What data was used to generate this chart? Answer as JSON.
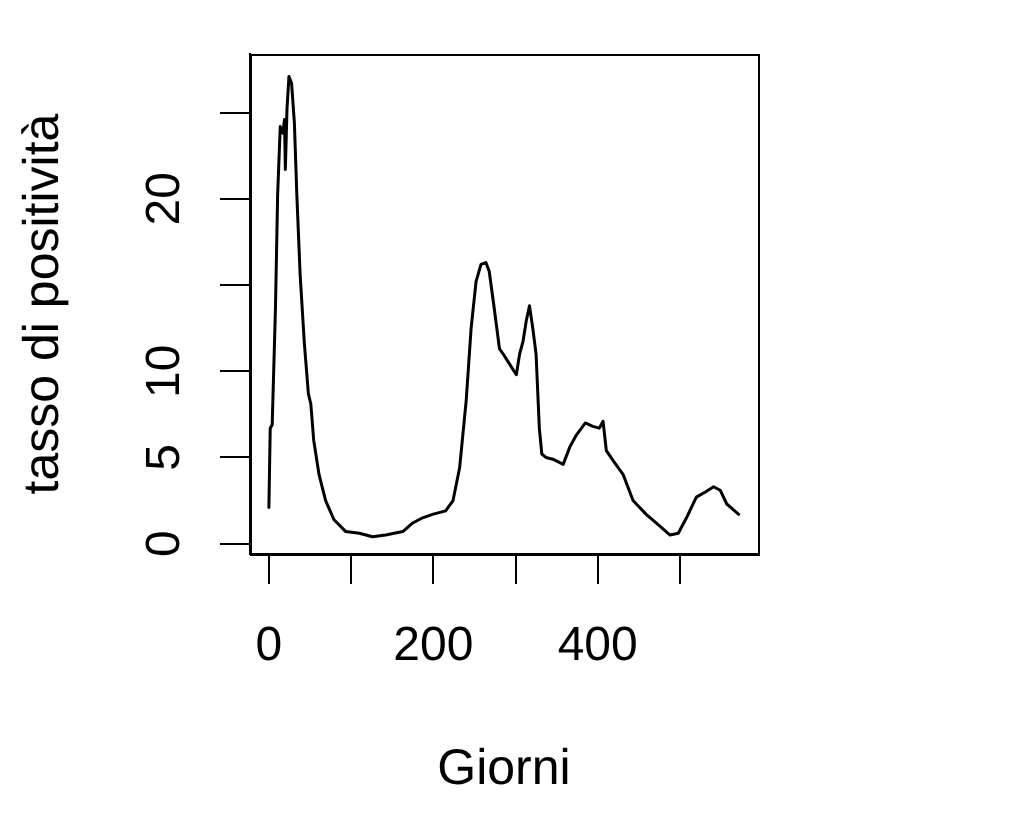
{
  "chart_data": {
    "type": "line",
    "xlabel": "Giorni",
    "ylabel": "tasso di positività",
    "color": "#000000",
    "x": [
      0,
      1.6,
      4,
      8,
      10.6,
      13.8,
      17,
      19,
      20,
      22,
      24.4,
      27.6,
      31,
      34,
      38,
      43,
      48,
      51,
      54.5,
      61,
      69,
      79,
      93.5,
      110,
      126,
      142,
      163,
      175,
      187,
      199,
      215,
      224,
      232,
      240,
      246,
      252,
      258,
      264,
      268,
      274,
      280.5,
      285,
      293,
      301,
      305,
      309,
      313,
      317,
      321,
      325,
      329,
      332,
      337,
      345.5,
      358,
      366,
      374,
      385,
      394,
      402,
      406.5,
      410.5,
      419,
      431,
      443,
      459,
      476,
      488,
      498,
      508,
      520,
      531,
      541,
      549,
      557,
      571.5
    ],
    "values": [
      2.1,
      6.7,
      6.9,
      13.7,
      20.2,
      24.2,
      23.8,
      24.6,
      21.7,
      25.2,
      27.1,
      26.7,
      24.4,
      20.2,
      15.6,
      11.7,
      8.7,
      8.1,
      6,
      4,
      2.5,
      1.4,
      0.7,
      0.6,
      0.4,
      0.5,
      0.7,
      1.2,
      1.5,
      1.7,
      1.9,
      2.5,
      4.4,
      8.3,
      12.5,
      15.2,
      16.2,
      16.3,
      15.8,
      13.7,
      11.3,
      11,
      10.4,
      9.8,
      11,
      11.7,
      12.9,
      13.8,
      12.5,
      11,
      6.7,
      5.2,
      5,
      4.9,
      4.6,
      5.6,
      6.3,
      7,
      6.8,
      6.7,
      7.1,
      5.4,
      4.8,
      4,
      2.5,
      1.7,
      1,
      0.5,
      0.6,
      1.5,
      2.7,
      3,
      3.3,
      3.1,
      2.3,
      1.7
    ],
    "xlim": [
      -23,
      595
    ],
    "ylim": [
      -0.6,
      28.4
    ],
    "xticks": [
      0,
      {
        "value": 100,
        "label": null
      },
      200,
      {
        "value": 300,
        "label": null
      },
      400,
      {
        "value": 500,
        "label": null
      }
    ],
    "yticks": [
      0,
      5,
      10,
      {
        "value": 15,
        "label": null
      },
      20,
      {
        "value": 25,
        "label": null
      }
    ]
  }
}
